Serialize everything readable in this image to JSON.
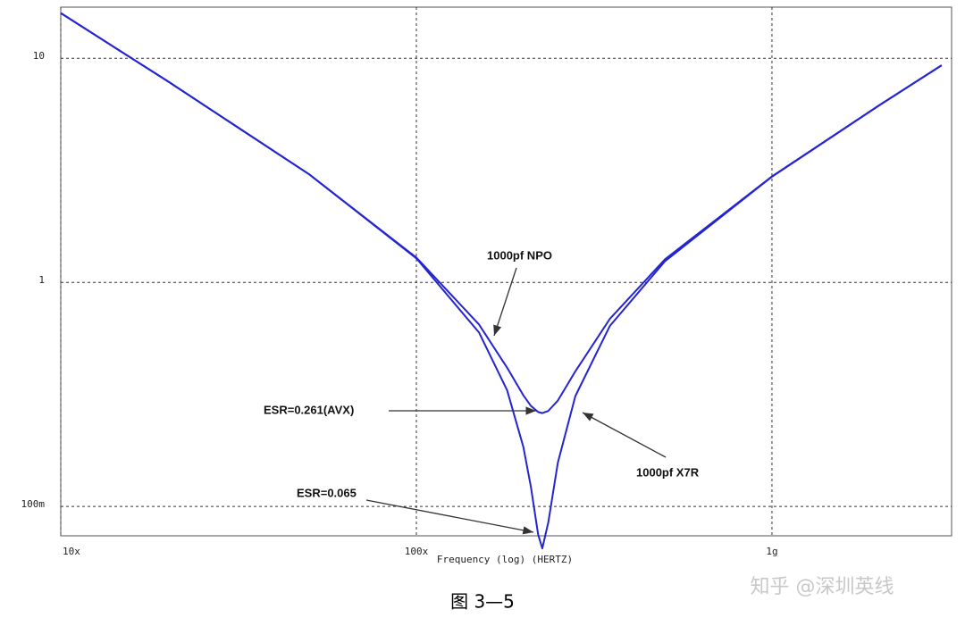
{
  "chart_data": {
    "type": "line",
    "xlabel": "Frequency (log) (HERTZ)",
    "caption": "图 3—5",
    "watermark": "知乎 @深圳英线",
    "xscale": "log",
    "yscale": "log",
    "grid": true,
    "xlim": [
      10000000,
      3200000000
    ],
    "ylim": [
      0.074,
      16.9
    ],
    "xticks": [
      {
        "value": 10000000,
        "label": "10x"
      },
      {
        "value": 100000000,
        "label": "100x"
      },
      {
        "value": 1000000000,
        "label": "1g"
      }
    ],
    "yticks": [
      10,
      1,
      {
        "value": 0.1,
        "label": "100m"
      }
    ],
    "x": [
      10000000,
      20000000,
      50000000,
      100000000,
      150000000,
      180000000,
      200000000,
      210000000,
      220000000,
      226000000,
      235000000,
      250000000,
      280000000,
      350000000,
      500000000,
      1000000000,
      2000000000,
      3000000000
    ],
    "series": [
      {
        "name": "1000pf NPO",
        "color": "#2424d0",
        "values": [
          15.9,
          7.89,
          3.03,
          1.29,
          0.649,
          0.416,
          0.313,
          0.281,
          0.264,
          0.261,
          0.267,
          0.297,
          0.401,
          0.687,
          1.267,
          2.97,
          6.16,
          9.3
        ]
      },
      {
        "name": "1000pf X7R",
        "color": "#2424d0",
        "values": [
          15.9,
          7.89,
          3.03,
          1.28,
          0.598,
          0.33,
          0.184,
          0.122,
          0.075,
          0.065,
          0.085,
          0.157,
          0.311,
          0.639,
          1.242,
          2.96,
          6.15,
          9.3
        ]
      }
    ],
    "annotations": [
      "ESR=0.261(AVX)",
      "ESR=0.065"
    ]
  }
}
